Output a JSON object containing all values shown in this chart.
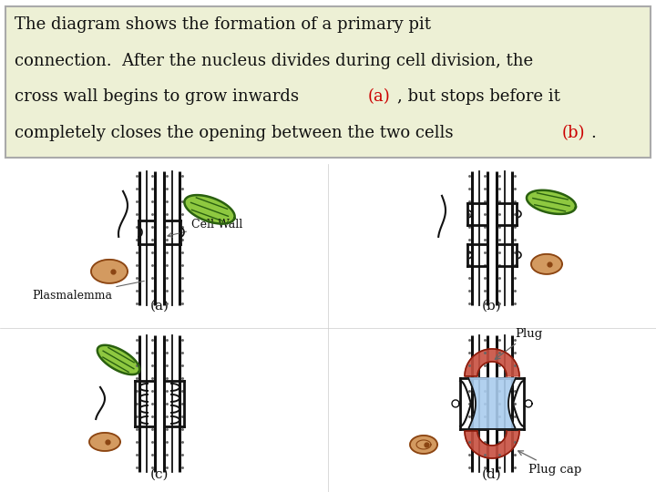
{
  "bg_color_top": "#edf0d5",
  "bg_color_main": "#ffffff",
  "text_color": "#111111",
  "red_color": "#cc0000",
  "label_a": "(a)",
  "label_b": "(b)",
  "label_c": "(c)",
  "label_d": "(d)",
  "ann_plasmalemma": "Plasmalemma",
  "ann_cellwall": "Cell Wall",
  "ann_plug": "Plug",
  "ann_plugcap": "Plug cap",
  "green_light": "#8ec840",
  "green_dark": "#2a6010",
  "orange_fill": "#cc8844",
  "orange_border": "#8B4513",
  "blue_fill": "#aaccee",
  "red_fill": "#c85040",
  "red_border": "#8B1a0a",
  "wall_color": "#111111",
  "dot_color": "#666666",
  "text_fontsize": 13.0,
  "diagram_fontsize": 9.0,
  "label_fontsize": 11.0
}
